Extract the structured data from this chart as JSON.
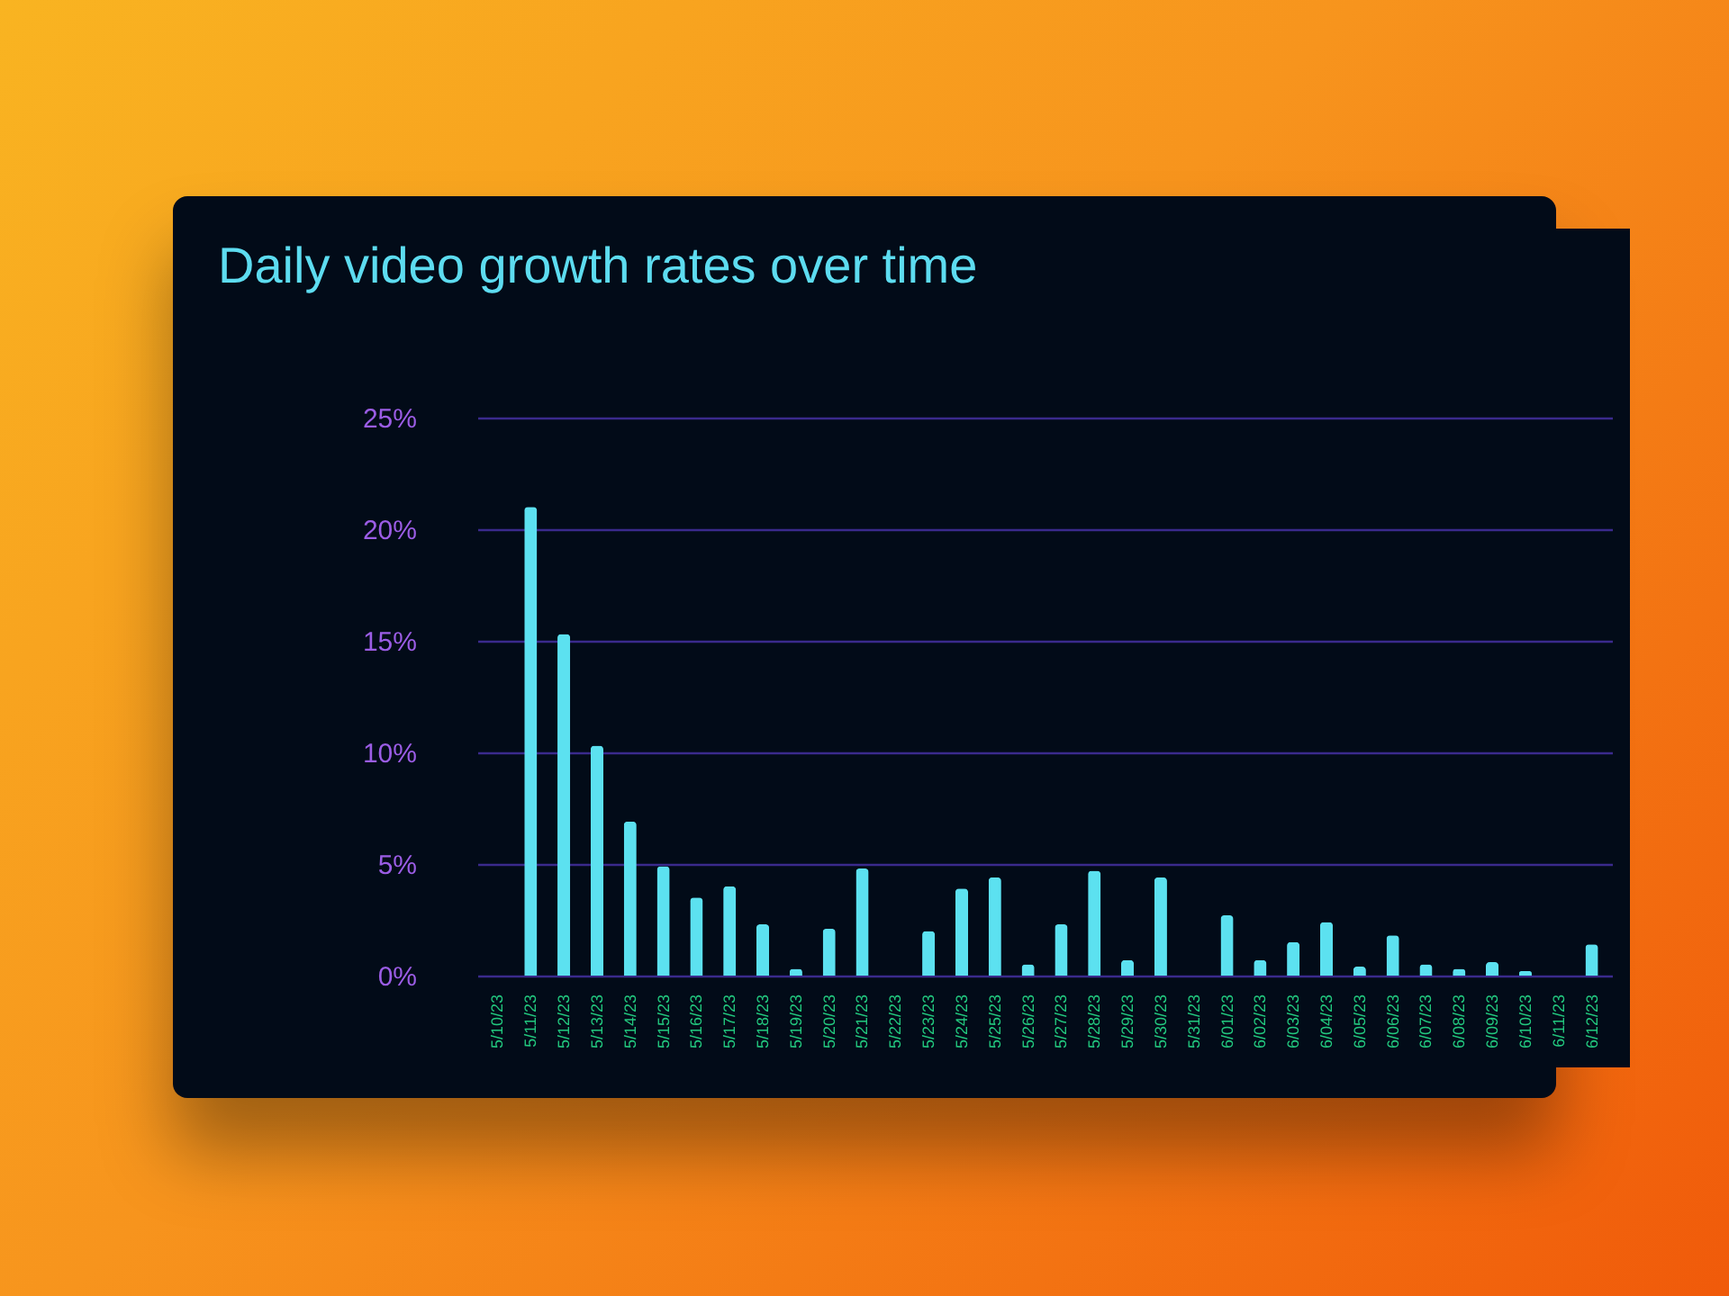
{
  "chart_data": {
    "type": "bar",
    "title": "Daily video growth rates over time",
    "categories": [
      "5/10/23",
      "5/11/23",
      "5/12/23",
      "5/13/23",
      "5/14/23",
      "5/15/23",
      "5/16/23",
      "5/17/23",
      "5/18/23",
      "5/19/23",
      "5/20/23",
      "5/21/23",
      "5/22/23",
      "5/23/23",
      "5/24/23",
      "5/25/23",
      "5/26/23",
      "5/27/23",
      "5/28/23",
      "5/29/23",
      "5/30/23",
      "5/31/23",
      "6/01/23",
      "6/02/23",
      "6/03/23",
      "6/04/23",
      "6/05/23",
      "6/06/23",
      "6/07/23",
      "6/08/23",
      "6/09/23",
      "6/10/23",
      "6/11/23",
      "6/12/23"
    ],
    "values": [
      0,
      21.0,
      15.3,
      10.3,
      6.9,
      4.9,
      3.5,
      4.0,
      2.3,
      0.3,
      2.1,
      4.8,
      0,
      2.0,
      3.9,
      4.4,
      0.5,
      2.3,
      4.7,
      0.7,
      4.4,
      0,
      2.7,
      0.7,
      1.5,
      2.4,
      0.4,
      1.8,
      0.5,
      0.3,
      0.6,
      0.2,
      0,
      1.4
    ],
    "color": "#5ce1f0",
    "ylim": [
      0,
      25
    ],
    "yticks": [
      {
        "value": 0,
        "label": "0%"
      },
      {
        "value": 5,
        "label": "5%"
      },
      {
        "value": 10,
        "label": "10%"
      },
      {
        "value": 15,
        "label": "15%"
      },
      {
        "value": 20,
        "label": "20%"
      },
      {
        "value": 25,
        "label": "25%"
      }
    ],
    "grid": "y"
  }
}
